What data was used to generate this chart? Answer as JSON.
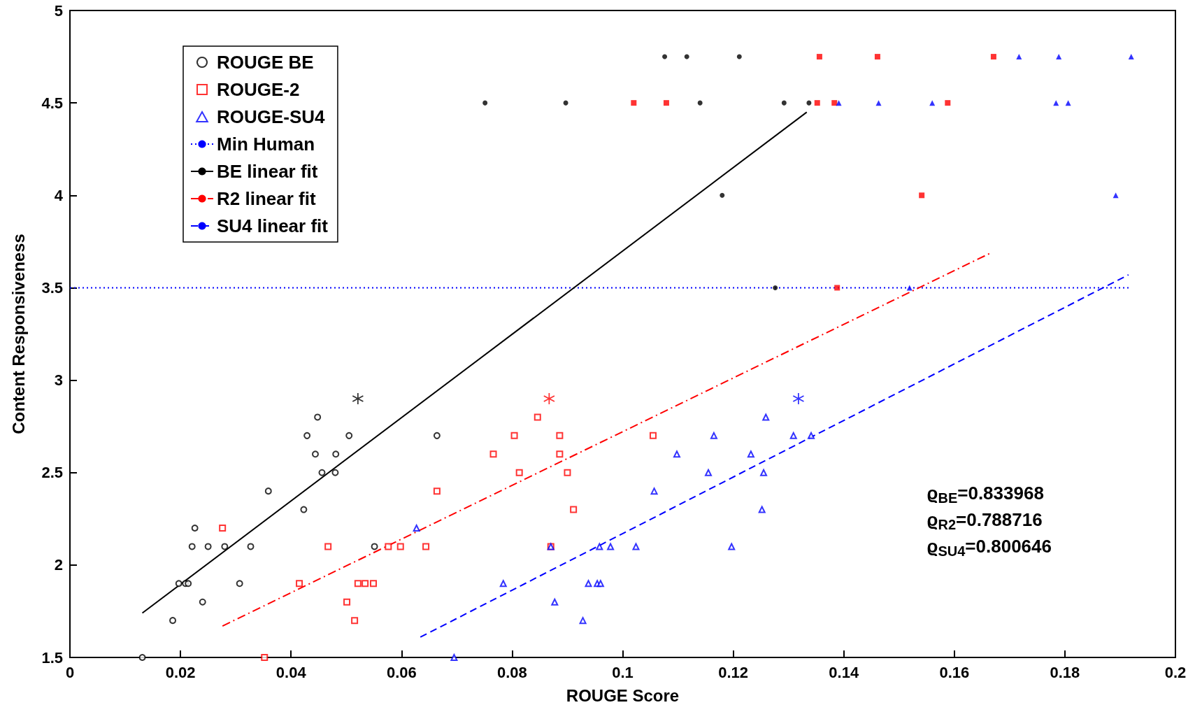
{
  "chart_data": {
    "type": "scatter",
    "xlabel": "ROUGE Score",
    "ylabel": "Content Responsiveness",
    "xlim": [
      0,
      0.2
    ],
    "xticks": [
      0,
      0.02,
      0.04,
      0.06,
      0.08,
      0.1,
      0.12,
      0.14,
      0.16,
      0.18,
      0.2
    ],
    "ylim": [
      1.5,
      5
    ],
    "yticks": [
      1.5,
      2,
      2.5,
      3,
      3.5,
      4,
      4.5,
      5
    ],
    "grid": false,
    "legend": "top left",
    "annotations": [
      "ϱ$_{BE}$=0.833968",
      "ϱ$_{R2}$=0.788716",
      "ϱ$_{SU4}$=0.800646"
    ],
    "series": [
      {
        "name": "ROUGE BE",
        "color": "#000000",
        "marker": "circle",
        "x": [
          0.0131,
          0.0186,
          0.0197,
          0.0209,
          0.0214,
          0.0221,
          0.0226,
          0.024,
          0.025,
          0.028,
          0.0307,
          0.0327,
          0.0359,
          0.0423,
          0.0429,
          0.0444,
          0.0448,
          0.0456,
          0.0481,
          0.048,
          0.0505,
          0.0551,
          0.0664
        ],
        "values": [
          1.5,
          1.7,
          1.9,
          1.9,
          1.9,
          2.1,
          2.2,
          1.8,
          2.1,
          2.1,
          1.9,
          2.1,
          2.4,
          2.3,
          2.7,
          2.6,
          2.8,
          2.5,
          2.6,
          2.5,
          2.7,
          2.1,
          2.7
        ]
      },
      {
        "name": "ROUGE-2",
        "color": "#ff0000",
        "marker": "square",
        "x": [
          0.0276,
          0.0352,
          0.0415,
          0.0467,
          0.0501,
          0.0515,
          0.0521,
          0.0534,
          0.0549,
          0.0576,
          0.0598,
          0.0644,
          0.0664,
          0.0766,
          0.0804,
          0.0813,
          0.0846,
          0.087,
          0.0886,
          0.0886,
          0.09,
          0.0911,
          0.1055
        ],
        "values": [
          2.2,
          1.5,
          1.9,
          2.1,
          1.8,
          1.7,
          1.9,
          1.9,
          1.9,
          2.1,
          2.1,
          2.1,
          2.4,
          2.6,
          2.7,
          2.5,
          2.8,
          2.1,
          2.7,
          2.6,
          2.5,
          2.3,
          2.7
        ]
      },
      {
        "name": "ROUGE-SU4",
        "color": "#0000ff",
        "marker": "triangle",
        "x": [
          0.0627,
          0.0695,
          0.0784,
          0.087,
          0.0877,
          0.0928,
          0.0938,
          0.0954,
          0.096,
          0.0958,
          0.0978,
          0.1024,
          0.1057,
          0.1098,
          0.1155,
          0.1165,
          0.1197,
          0.1232,
          0.1252,
          0.1255,
          0.1259,
          0.1309,
          0.1341
        ],
        "values": [
          2.2,
          1.5,
          1.9,
          2.1,
          1.8,
          1.7,
          1.9,
          1.9,
          1.9,
          2.1,
          2.1,
          2.1,
          2.4,
          2.6,
          2.5,
          2.7,
          2.1,
          2.6,
          2.3,
          2.5,
          2.8,
          2.7,
          2.7
        ]
      },
      {
        "name": "Min Human",
        "type": "line",
        "color": "#0000ff",
        "line_style": "dotted",
        "x": [
          0,
          0.192
        ],
        "values": [
          3.5,
          3.5
        ]
      },
      {
        "name": "BE linear fit",
        "type": "line",
        "color": "#000000",
        "line_style": "solid",
        "x": [
          0.0131,
          0.1333
        ],
        "values": [
          1.74,
          4.45
        ]
      },
      {
        "name": "R2 linear fit",
        "type": "line",
        "color": "#ff0000",
        "line_style": "dashdot",
        "x": [
          0.0276,
          0.1667
        ],
        "values": [
          1.67,
          3.69
        ]
      },
      {
        "name": "SU4 linear fit",
        "type": "line",
        "color": "#0000ff",
        "line_style": "dashed",
        "x": [
          0.0634,
          0.1915
        ],
        "values": [
          1.61,
          3.57
        ]
      },
      {
        "color": "#000000",
        "marker": "circle",
        "x": [
          0.1076,
          0.1116,
          0.1211,
          0.0751,
          0.0897,
          0.114,
          0.1292,
          0.1337,
          0.118,
          0.1276
        ],
        "values": [
          4.75,
          4.75,
          4.75,
          4.5,
          4.5,
          4.5,
          4.5,
          4.5,
          4,
          3.5
        ]
      },
      {
        "color": "#ff0000",
        "marker": "square",
        "x": [
          0.1356,
          0.1461,
          0.1671,
          0.102,
          0.1079,
          0.1352,
          0.1383,
          0.1588,
          0.1541,
          0.1388
        ],
        "values": [
          4.75,
          4.75,
          4.75,
          4.5,
          4.5,
          4.5,
          4.5,
          4.5,
          4,
          3.5
        ]
      },
      {
        "color": "#0000ff",
        "marker": "triangle",
        "x": [
          0.1717,
          0.1789,
          0.192,
          0.1391,
          0.1463,
          0.156,
          0.1784,
          0.1806,
          0.1892,
          0.1519
        ],
        "values": [
          4.75,
          4.75,
          4.75,
          4.5,
          4.5,
          4.5,
          4.5,
          4.5,
          4,
          3.5
        ]
      },
      {
        "color": "#000000",
        "marker": "cross",
        "x": [
          0.0521
        ],
        "values": [
          2.9
        ]
      },
      {
        "color": "#ff0000",
        "marker": "cross",
        "x": [
          0.0867
        ],
        "values": [
          2.9
        ]
      },
      {
        "color": "#0000ff",
        "marker": "cross",
        "x": [
          0.1318
        ],
        "values": [
          2.9
        ]
      }
    ]
  }
}
